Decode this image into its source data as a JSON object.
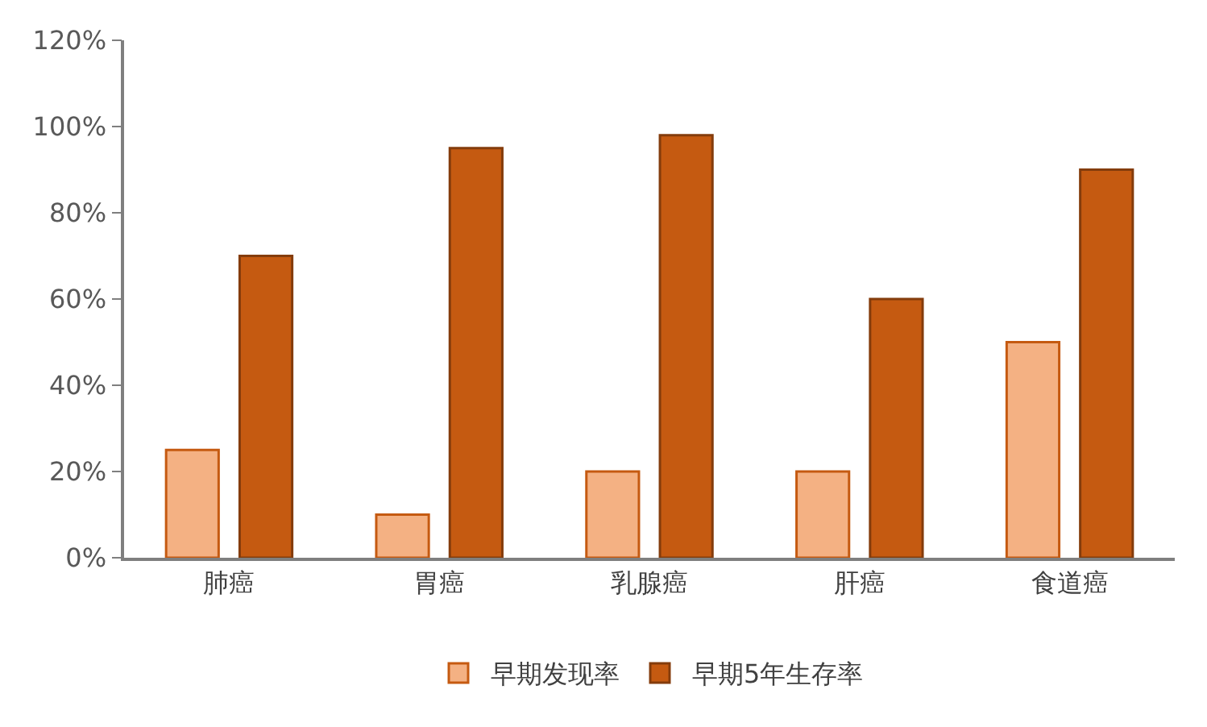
{
  "chart_data": {
    "type": "bar",
    "categories": [
      "肺癌",
      "胃癌",
      "乳腺癌",
      "肝癌",
      "食道癌"
    ],
    "series": [
      {
        "name": "早期发现率",
        "color": "#f4b183",
        "values": [
          25,
          10,
          20,
          20,
          50
        ]
      },
      {
        "name": "早期5年生存率",
        "color": "#c55a11",
        "values": [
          70,
          95,
          98,
          60,
          90
        ]
      }
    ],
    "ylim": [
      0,
      120
    ],
    "yticks": [
      {
        "value": 0,
        "label": "0%"
      },
      {
        "value": 20,
        "label": "20%"
      },
      {
        "value": 40,
        "label": "40%"
      },
      {
        "value": 60,
        "label": "60%"
      },
      {
        "value": 80,
        "label": "80%"
      },
      {
        "value": 100,
        "label": "100%"
      },
      {
        "value": 120,
        "label": "120%"
      }
    ],
    "legend": "bottom"
  }
}
